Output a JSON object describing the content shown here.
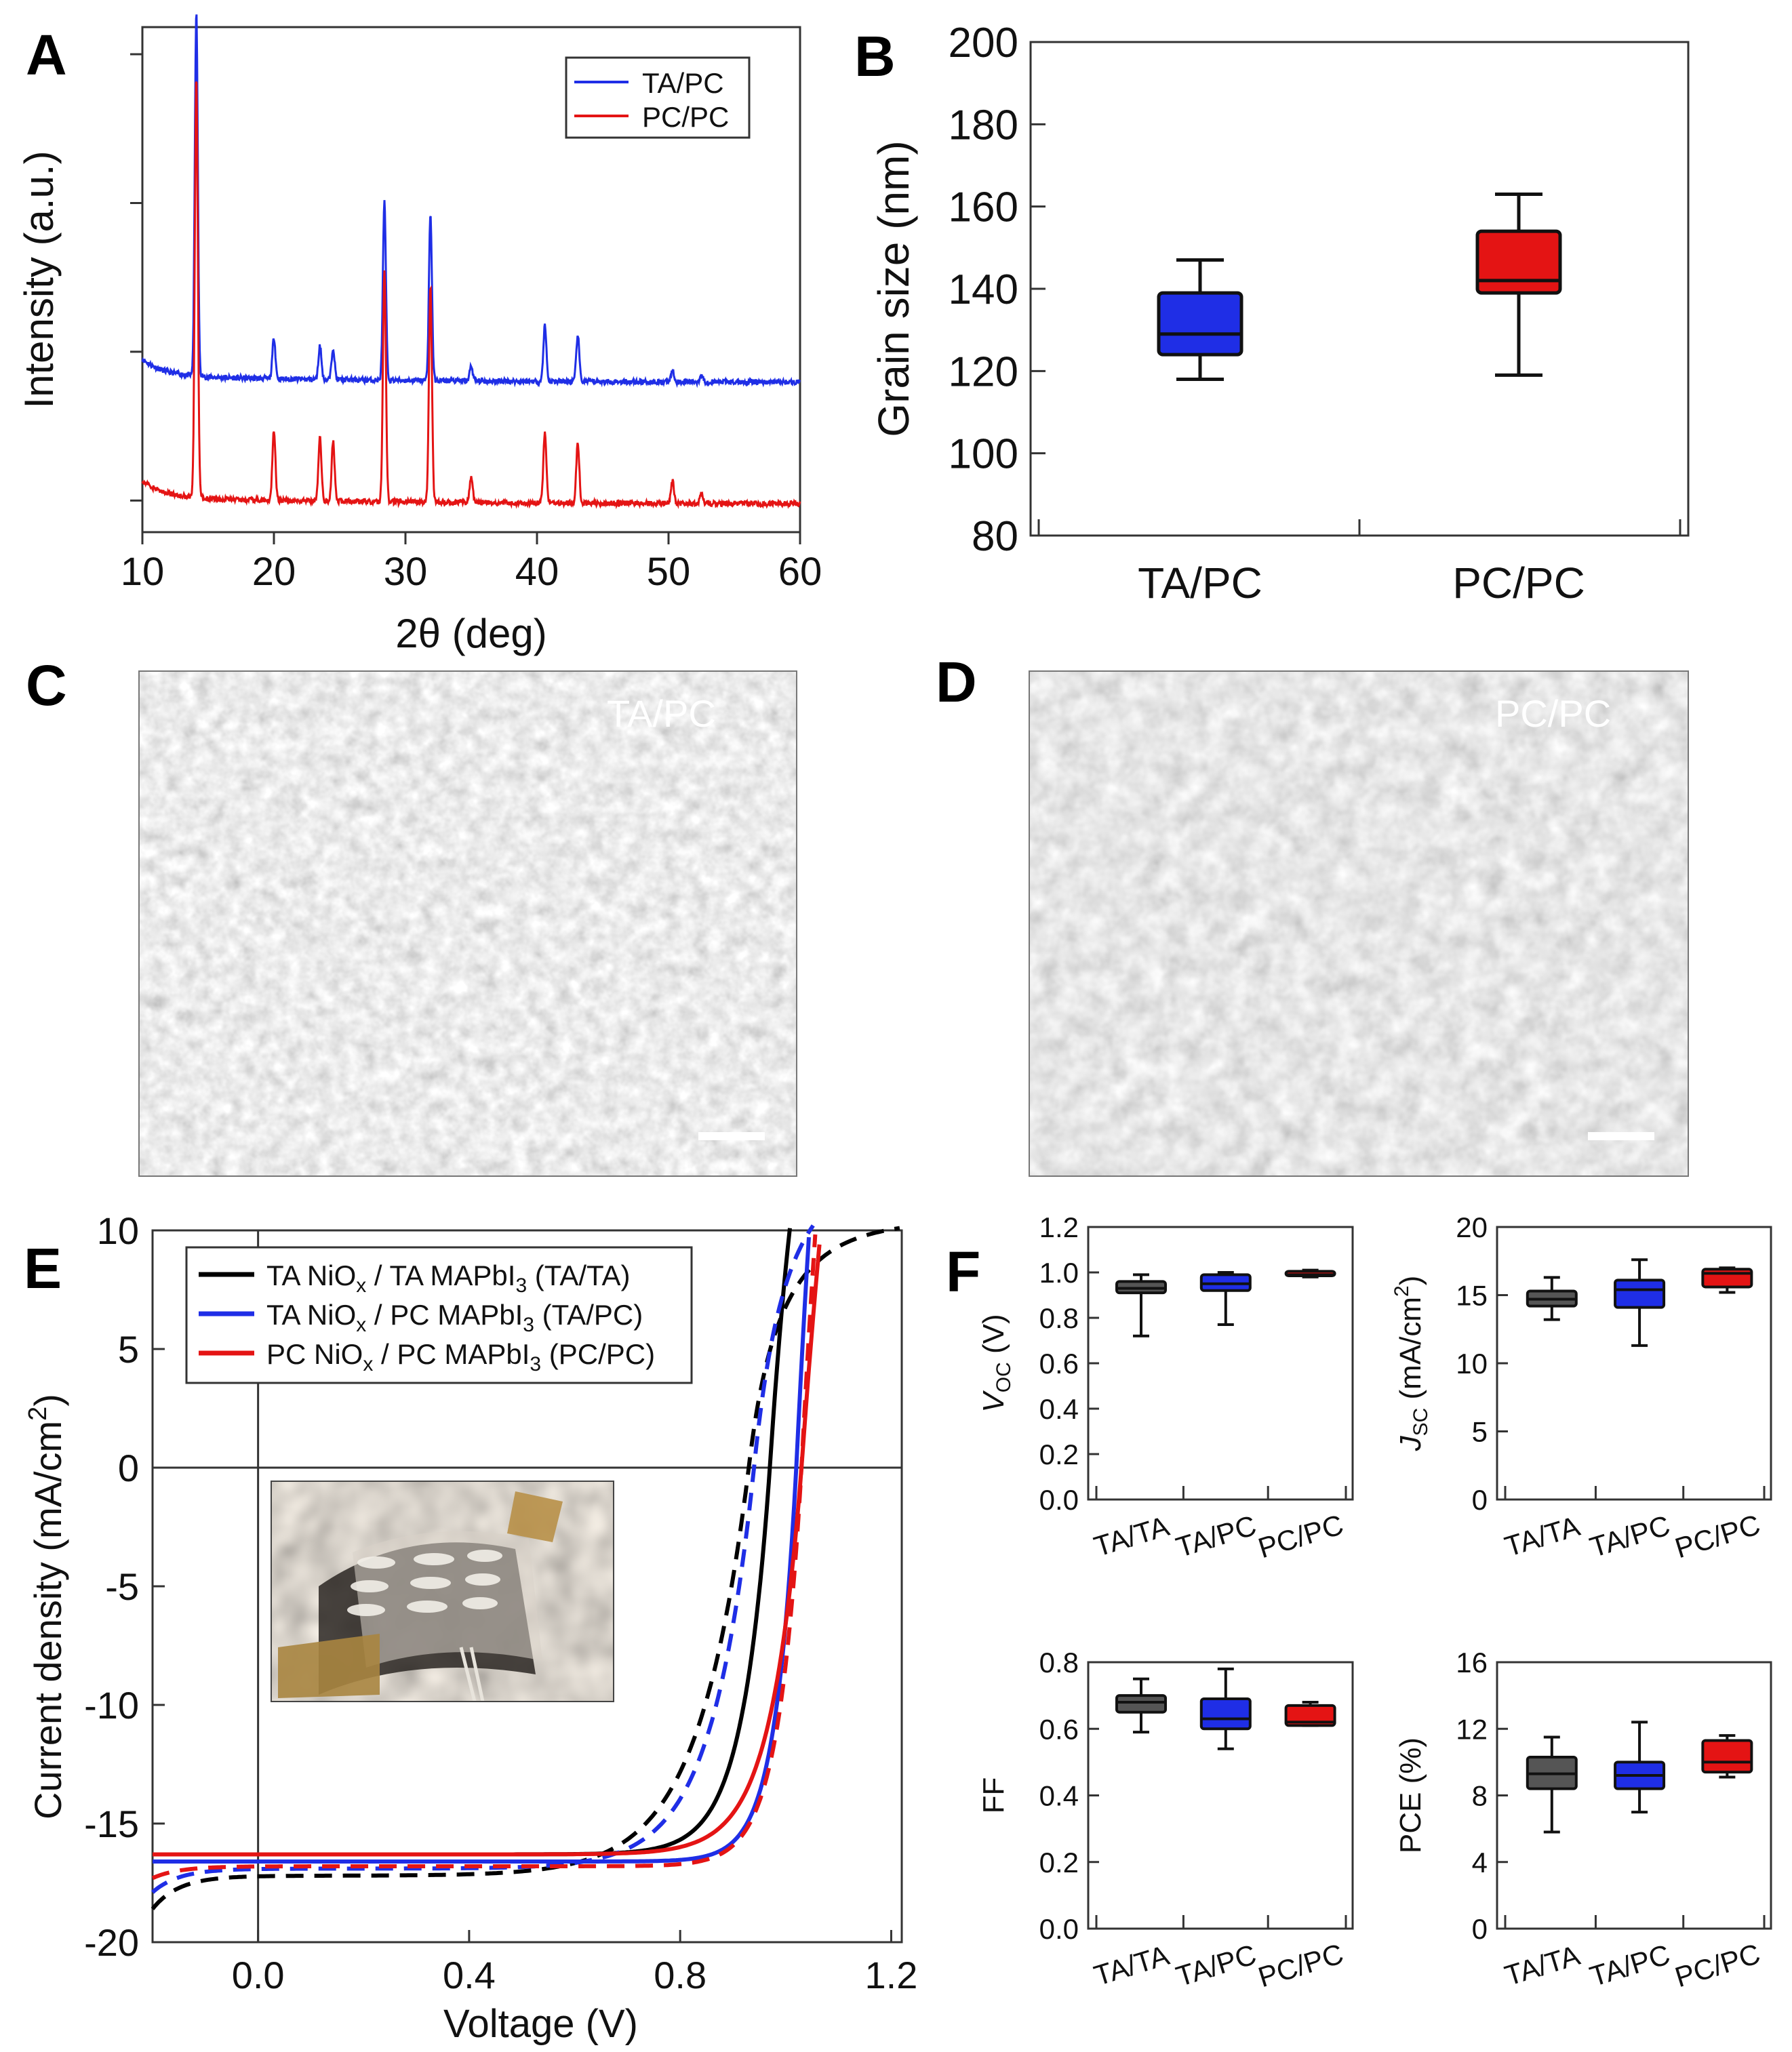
{
  "panel_labels": {
    "A": "A",
    "B": "B",
    "C": "C",
    "D": "D",
    "E": "E",
    "F": "F"
  },
  "colors": {
    "ta_pc": "#1f2ee6",
    "pc_pc": "#e41414",
    "ta_ta": "#000000",
    "box_gray": "#555555"
  },
  "chart_data": [
    {
      "id": "A",
      "type": "line",
      "xlabel": "2θ (deg)",
      "ylabel": "Intensity (a.u.)",
      "xlim": [
        10,
        60
      ],
      "xticks": [
        10,
        20,
        30,
        40,
        50,
        60
      ],
      "legend": "top-right",
      "series": [
        {
          "name": "TA/PC",
          "color": "#1f2ee6",
          "baseline": 0.7,
          "peaks": [
            [
              14.1,
              1.95
            ],
            [
              20.0,
              0.22
            ],
            [
              23.5,
              0.18
            ],
            [
              24.5,
              0.17
            ],
            [
              28.4,
              0.95
            ],
            [
              31.9,
              0.89
            ],
            [
              35.0,
              0.08
            ],
            [
              40.6,
              0.3
            ],
            [
              43.1,
              0.25
            ],
            [
              50.3,
              0.06
            ],
            [
              52.5,
              0.04
            ]
          ]
        },
        {
          "name": "PC/PC",
          "color": "#e41414",
          "baseline": 0.05,
          "peaks": [
            [
              14.1,
              2.25
            ],
            [
              20.0,
              0.38
            ],
            [
              23.5,
              0.34
            ],
            [
              24.5,
              0.32
            ],
            [
              28.4,
              1.25
            ],
            [
              31.9,
              1.15
            ],
            [
              35.0,
              0.14
            ],
            [
              40.6,
              0.38
            ],
            [
              43.1,
              0.33
            ],
            [
              50.3,
              0.12
            ],
            [
              52.5,
              0.06
            ]
          ]
        }
      ]
    },
    {
      "id": "B",
      "type": "box",
      "ylabel": "Grain size (nm)",
      "ylim": [
        80,
        200
      ],
      "yticks": [
        80,
        100,
        120,
        140,
        160,
        180,
        200
      ],
      "categories": [
        "TA/PC",
        "PC/PC"
      ],
      "boxes": [
        {
          "name": "TA/PC",
          "min": 118,
          "q1": 124,
          "median": 129,
          "q3": 139,
          "max": 147,
          "color": "#1f2ee6"
        },
        {
          "name": "PC/PC",
          "min": 119,
          "q1": 139,
          "median": 142,
          "q3": 154,
          "max": 163,
          "color": "#e41414"
        }
      ]
    },
    {
      "id": "E",
      "type": "line",
      "xlabel": "Voltage (V)",
      "ylabel": "Current density (mA/cm",
      "ylabel_sup": "2",
      "ylabel_end": ")",
      "xlim": [
        -0.2,
        1.22
      ],
      "ylim": [
        -20,
        10
      ],
      "xticks": [
        0.0,
        0.4,
        0.8,
        1.2
      ],
      "xtick_labels": [
        "0.0",
        "0.4",
        "0.8",
        "1.2"
      ],
      "yticks": [
        -20,
        -15,
        -10,
        -5,
        0,
        5,
        10
      ],
      "legend": "top-left",
      "legend_entries": [
        {
          "color": "#000000",
          "parts": [
            "TA NiO",
            "x",
            " / TA MAPbI",
            "3",
            " (TA/TA)"
          ]
        },
        {
          "color": "#1f2ee6",
          "parts": [
            "TA NiO",
            "x",
            " / PC MAPbI",
            "3",
            " (TA/PC)"
          ]
        },
        {
          "color": "#e41414",
          "parts": [
            "PC NiO",
            "x",
            " / PC MAPbI",
            "3",
            " (PC/PC)"
          ]
        }
      ],
      "series": [
        {
          "name": "TA/TA forward",
          "color": "#000000",
          "dash": false,
          "jsc": 16.3,
          "voc": 0.97,
          "n": 0.052,
          "series_r": 2.0
        },
        {
          "name": "TA/TA reverse",
          "color": "#000000",
          "dash": true,
          "jsc": 17.2,
          "voc": 0.93,
          "n": 0.095,
          "series_r": 1.0,
          "sweep_tail": 1.4
        },
        {
          "name": "TA/PC forward",
          "color": "#1f2ee6",
          "dash": false,
          "jsc": 16.6,
          "voc": 1.02,
          "n": 0.04,
          "series_r": 2.5
        },
        {
          "name": "TA/PC reverse",
          "color": "#1f2ee6",
          "dash": true,
          "jsc": 16.9,
          "voc": 0.94,
          "n": 0.08,
          "series_r": 1.2,
          "sweep_tail": 1.0
        },
        {
          "name": "PC/PC forward",
          "color": "#e41414",
          "dash": false,
          "jsc": 16.3,
          "voc": 1.03,
          "n": 0.058,
          "series_r": 2.5
        },
        {
          "name": "PC/PC reverse",
          "color": "#e41414",
          "dash": true,
          "jsc": 16.8,
          "voc": 1.03,
          "n": 0.044,
          "series_r": 2.6,
          "sweep_tail": 0.5
        }
      ]
    },
    {
      "id": "F-Voc",
      "type": "box",
      "ylabel": "V",
      "ylabel_sub": "OC",
      "ylabel_end": " (V)",
      "ylim": [
        0.0,
        1.2
      ],
      "yticks": [
        0.0,
        0.2,
        0.4,
        0.6,
        0.8,
        1.0,
        1.2
      ],
      "ytick_labels": [
        "0.0",
        "0.2",
        "0.4",
        "0.6",
        "0.8",
        "1.0",
        "1.2"
      ],
      "categories": [
        "TA/TA",
        "TA/PC",
        "PC/PC"
      ],
      "boxes": [
        {
          "name": "TA/TA",
          "min": 0.72,
          "q1": 0.91,
          "median": 0.93,
          "q3": 0.96,
          "max": 0.99,
          "color": "#555555"
        },
        {
          "name": "TA/PC",
          "min": 0.77,
          "q1": 0.92,
          "median": 0.95,
          "q3": 0.99,
          "max": 1.0,
          "color": "#1f2ee6"
        },
        {
          "name": "PC/PC",
          "min": 0.98,
          "q1": 0.985,
          "median": 0.99,
          "q3": 1.005,
          "max": 1.01,
          "color": "#e41414"
        }
      ]
    },
    {
      "id": "F-Jsc",
      "type": "box",
      "ylabel": "J",
      "ylabel_sub": "SC",
      "ylabel_end": " (mA/cm",
      "ylabel_sup": "2",
      "ylabel_close": ")",
      "ylim": [
        0,
        20
      ],
      "yticks": [
        0,
        5,
        10,
        15,
        20
      ],
      "ytick_labels": [
        "0",
        "5",
        "10",
        "15",
        "20"
      ],
      "categories": [
        "TA/TA",
        "TA/PC",
        "PC/PC"
      ],
      "boxes": [
        {
          "name": "TA/TA",
          "min": 13.2,
          "q1": 14.2,
          "median": 14.7,
          "q3": 15.3,
          "max": 16.3,
          "color": "#555555"
        },
        {
          "name": "TA/PC",
          "min": 11.3,
          "q1": 14.1,
          "median": 15.4,
          "q3": 16.1,
          "max": 17.6,
          "color": "#1f2ee6"
        },
        {
          "name": "PC/PC",
          "min": 15.2,
          "q1": 15.6,
          "median": 16.6,
          "q3": 16.9,
          "max": 17.0,
          "color": "#e41414"
        }
      ]
    },
    {
      "id": "F-FF",
      "type": "box",
      "ylabel": "FF",
      "ylim": [
        0.0,
        0.8
      ],
      "yticks": [
        0.0,
        0.2,
        0.4,
        0.6,
        0.8
      ],
      "ytick_labels": [
        "0.0",
        "0.2",
        "0.4",
        "0.6",
        "0.8"
      ],
      "categories": [
        "TA/TA",
        "TA/PC",
        "PC/PC"
      ],
      "boxes": [
        {
          "name": "TA/TA",
          "min": 0.59,
          "q1": 0.65,
          "median": 0.68,
          "q3": 0.7,
          "max": 0.75,
          "color": "#555555"
        },
        {
          "name": "TA/PC",
          "min": 0.54,
          "q1": 0.6,
          "median": 0.63,
          "q3": 0.69,
          "max": 0.78,
          "color": "#1f2ee6"
        },
        {
          "name": "PC/PC",
          "min": 0.61,
          "q1": 0.61,
          "median": 0.62,
          "q3": 0.67,
          "max": 0.68,
          "color": "#e41414"
        }
      ]
    },
    {
      "id": "F-PCE",
      "type": "box",
      "ylabel": "PCE (%)",
      "ylim": [
        0,
        16
      ],
      "yticks": [
        0,
        4,
        8,
        12,
        16
      ],
      "ytick_labels": [
        "0",
        "4",
        "8",
        "12",
        "16"
      ],
      "categories": [
        "TA/TA",
        "TA/PC",
        "PC/PC"
      ],
      "boxes": [
        {
          "name": "TA/TA",
          "min": 5.8,
          "q1": 8.4,
          "median": 9.3,
          "q3": 10.3,
          "max": 11.5,
          "color": "#555555"
        },
        {
          "name": "TA/PC",
          "min": 7.0,
          "q1": 8.4,
          "median": 9.2,
          "q3": 10.0,
          "max": 12.4,
          "color": "#1f2ee6"
        },
        {
          "name": "PC/PC",
          "min": 9.1,
          "q1": 9.4,
          "median": 10.0,
          "q3": 11.3,
          "max": 11.6,
          "color": "#e41414"
        }
      ]
    }
  ],
  "micrographs": {
    "C": {
      "label": "TA/PC"
    },
    "D": {
      "label": "PC/PC"
    }
  }
}
